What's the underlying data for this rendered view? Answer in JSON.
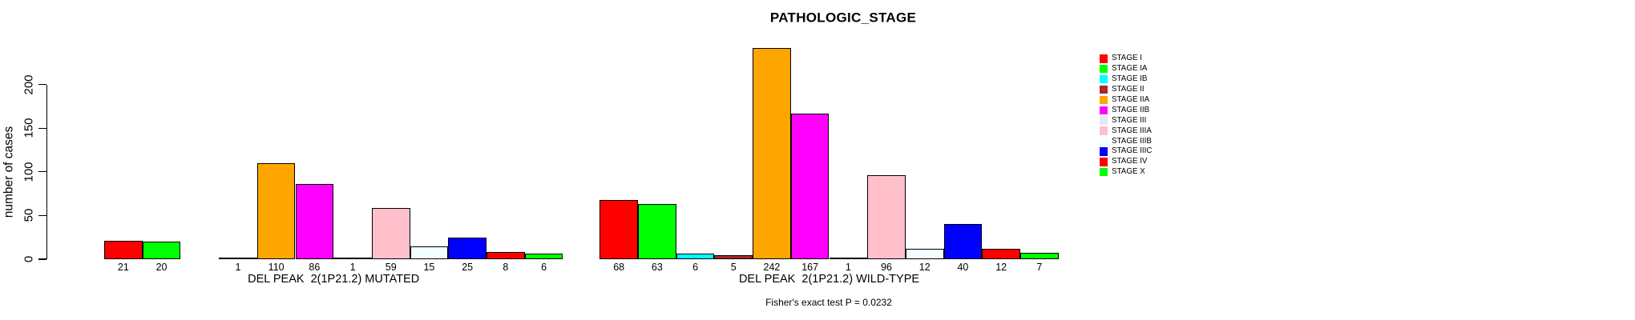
{
  "title": "PATHOLOGIC_STAGE",
  "annotation": "Fisher's exact test P = 0.0232",
  "y_axis": {
    "label": "number of cases",
    "ticks": [
      0,
      50,
      100,
      150,
      200
    ]
  },
  "legend": {
    "entries": [
      {
        "label": "STAGE I",
        "color": "#FF0000"
      },
      {
        "label": "STAGE IA",
        "color": "#00FF00"
      },
      {
        "label": "STAGE IB",
        "color": "#00FFFF"
      },
      {
        "label": "STAGE II",
        "color": "#A52A2A"
      },
      {
        "label": "STAGE IIA",
        "color": "#FFA500"
      },
      {
        "label": "STAGE IIB",
        "color": "#FF00FF"
      },
      {
        "label": "STAGE III",
        "color": "#E6E6FA"
      },
      {
        "label": "STAGE IIIA",
        "color": "#FFC0CB"
      },
      {
        "label": "STAGE IIIB",
        "color": "#F0FFFF"
      },
      {
        "label": "STAGE IIIC",
        "color": "#0000FF"
      },
      {
        "label": "STAGE IV",
        "color": "#FF0000"
      },
      {
        "label": "STAGE X",
        "color": "#00FF00"
      }
    ]
  },
  "chart_data": {
    "type": "bar",
    "title": "PATHOLOGIC_STAGE",
    "xlabel": "",
    "ylabel": "number of cases",
    "ylim": [
      0,
      245
    ],
    "yticks": [
      0,
      50,
      100,
      150,
      200
    ],
    "grid": false,
    "legend_position": "right",
    "bar_value_labels_shown": true,
    "zero_values_unlabeled": true,
    "categories": [
      "STAGE I",
      "STAGE IA",
      "STAGE IB",
      "STAGE II",
      "STAGE IIA",
      "STAGE IIB",
      "STAGE III",
      "STAGE IIIA",
      "STAGE IIIB",
      "STAGE IIIC",
      "STAGE IV",
      "STAGE X"
    ],
    "colors": [
      "#FF0000",
      "#00FF00",
      "#00FFFF",
      "#A52A2A",
      "#FFA500",
      "#FF00FF",
      "#E6E6FA",
      "#FFC0CB",
      "#F0FFFF",
      "#0000FF",
      "#FF0000",
      "#00FF00"
    ],
    "series": [
      {
        "name": "DEL PEAK  2(1P21.2) MUTATED",
        "values": [
          21,
          20,
          0,
          1,
          110,
          86,
          1,
          59,
          15,
          25,
          8,
          6
        ]
      },
      {
        "name": "DEL PEAK  2(1P21.2) WILD-TYPE",
        "values": [
          68,
          63,
          6,
          5,
          242,
          167,
          1,
          96,
          12,
          40,
          12,
          7
        ]
      }
    ],
    "annotation": "Fisher's exact test P = 0.0232"
  }
}
